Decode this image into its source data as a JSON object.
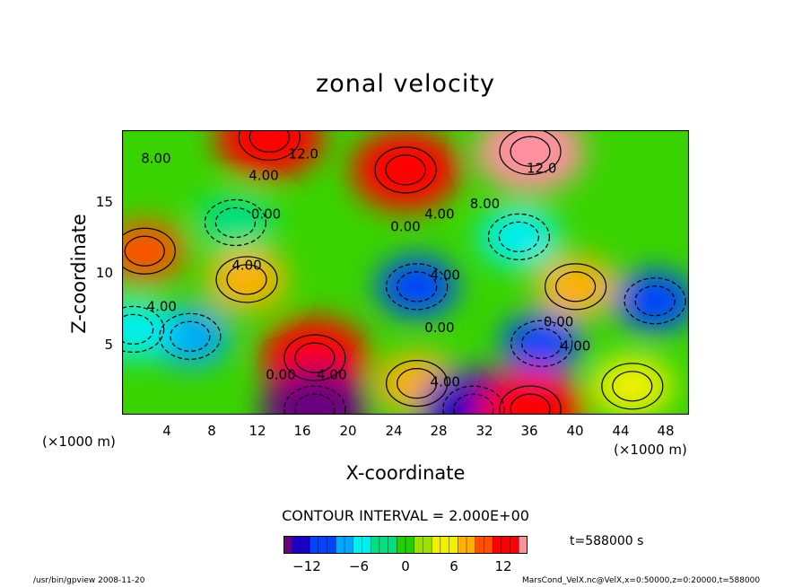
{
  "chart_data": {
    "type": "heatmap",
    "title": "zonal velocity",
    "xlabel": "X-coordinate",
    "ylabel": "Z-coordinate",
    "x_unit": "(×1000 m)",
    "y_unit": "(×1000 m)",
    "xlim": [
      0,
      50
    ],
    "ylim": [
      0,
      20
    ],
    "x_ticks": [
      "4",
      "8",
      "12",
      "16",
      "20",
      "24",
      "28",
      "32",
      "36",
      "40",
      "44",
      "48"
    ],
    "y_ticks": [
      "5",
      "10",
      "15"
    ],
    "contour_labels": [
      {
        "text": "8.00",
        "x": 3,
        "z": 17.7
      },
      {
        "text": "12.0",
        "x": 16,
        "z": 18.0
      },
      {
        "text": "4.00",
        "x": 12.5,
        "z": 16.5
      },
      {
        "text": "12.0",
        "x": 37,
        "z": 17.0
      },
      {
        "text": "0.00",
        "x": 12.7,
        "z": 13.8
      },
      {
        "text": "4.00",
        "x": 28,
        "z": 13.8
      },
      {
        "text": "8.00",
        "x": 32,
        "z": 14.5
      },
      {
        "text": "0.00",
        "x": 25,
        "z": 12.9
      },
      {
        "text": "4.00",
        "x": 11,
        "z": 10.2
      },
      {
        "text": "4.00",
        "x": 28.5,
        "z": 9.5
      },
      {
        "text": "4.00",
        "x": 3.5,
        "z": 7.3
      },
      {
        "text": "0.00",
        "x": 28,
        "z": 5.8
      },
      {
        "text": "0.00",
        "x": 38.5,
        "z": 6.2
      },
      {
        "text": "4.00",
        "x": 40,
        "z": 4.5
      },
      {
        "text": "0.00",
        "x": 14,
        "z": 2.5
      },
      {
        "text": "4.00",
        "x": 18.5,
        "z": 2.5
      },
      {
        "text": "4.00",
        "x": 28.5,
        "z": 2.0
      }
    ],
    "velocity_features": [
      {
        "x": 13,
        "z": 19.5,
        "value": 12
      },
      {
        "x": 36,
        "z": 18.5,
        "value": 13
      },
      {
        "x": 25,
        "z": 17.2,
        "value": 12
      },
      {
        "x": 2,
        "z": 11.5,
        "value": 9
      },
      {
        "x": 11,
        "z": 9.5,
        "value": 7
      },
      {
        "x": 26,
        "z": 9.0,
        "value": -10
      },
      {
        "x": 37,
        "z": 5.0,
        "value": -10
      },
      {
        "x": 47,
        "z": 8.0,
        "value": -9
      },
      {
        "x": 6,
        "z": 5.5,
        "value": -6
      },
      {
        "x": 1,
        "z": 6.0,
        "value": -5
      },
      {
        "x": 17,
        "z": 4.0,
        "value": 12
      },
      {
        "x": 26,
        "z": 2.2,
        "value": 7
      },
      {
        "x": 17,
        "z": 0.4,
        "value": -13
      },
      {
        "x": 31,
        "z": 0.4,
        "value": -11
      },
      {
        "x": 36,
        "z": 0.4,
        "value": 12
      },
      {
        "x": 10,
        "z": 13.5,
        "value": -3
      },
      {
        "x": 35,
        "z": 12.5,
        "value": -4
      },
      {
        "x": 40,
        "z": 9.0,
        "value": 8
      },
      {
        "x": 45,
        "z": 2.0,
        "value": 5
      }
    ],
    "colorbar": {
      "ticks": [
        "−12",
        "−6",
        "0",
        "6",
        "12"
      ],
      "range": [
        -14,
        14
      ],
      "colors": [
        "#6a0080",
        "#1a00c0",
        "#0044ff",
        "#00a8ff",
        "#00f0f0",
        "#00e080",
        "#20d000",
        "#a0e000",
        "#f0f000",
        "#ffb000",
        "#ff5000",
        "#ff0000",
        "#ff90a0"
      ]
    },
    "contour_interval_text": "CONTOUR INTERVAL = 2.000E+00",
    "time_text": "t=588000 s"
  },
  "footer": {
    "left": "/usr/bin/gpview   2008-11-20",
    "right": "MarsCond_VelX.nc@VelX,x=0:50000,z=0:20000,t=588000"
  }
}
